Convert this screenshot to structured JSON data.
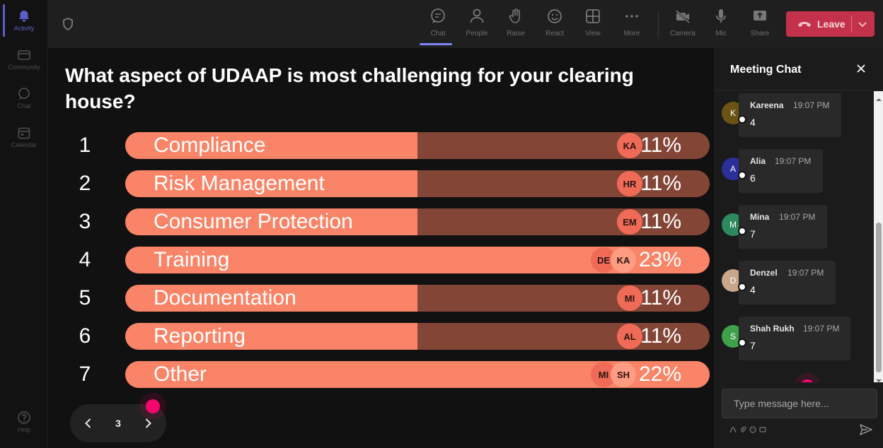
{
  "rail": {
    "items": [
      {
        "label": "Activity",
        "icon": "bell-icon"
      },
      {
        "label": "Community",
        "icon": "community-icon"
      },
      {
        "label": "Chat",
        "icon": "chat-icon"
      },
      {
        "label": "Calendar",
        "icon": "calendar-icon"
      }
    ],
    "help": {
      "label": "Help",
      "icon": "help-icon"
    }
  },
  "toolbar": {
    "items": [
      {
        "label": "Chat",
        "icon": "chat-icon"
      },
      {
        "label": "People",
        "icon": "people-icon"
      },
      {
        "label": "Raise",
        "icon": "hand-icon"
      },
      {
        "label": "React",
        "icon": "smiley-icon"
      },
      {
        "label": "View",
        "icon": "grid-icon"
      },
      {
        "label": "More",
        "icon": "more-icon"
      },
      {
        "label": "Camera",
        "icon": "camera-off-icon"
      },
      {
        "label": "Mic",
        "icon": "mic-icon"
      },
      {
        "label": "Share",
        "icon": "share-icon"
      }
    ],
    "leave_label": "Leave",
    "leave_color": "#c4314b"
  },
  "poll": {
    "question": "What aspect of UDAAP is most challenging for your clearing house?",
    "options": [
      {
        "number": "1",
        "label": "Compliance",
        "percent": "11%",
        "fill": 0.5,
        "avatars": [
          "KA"
        ]
      },
      {
        "number": "2",
        "label": "Risk Management",
        "percent": "11%",
        "fill": 0.5,
        "avatars": [
          "HR"
        ]
      },
      {
        "number": "3",
        "label": "Consumer Protection",
        "percent": "11%",
        "fill": 0.5,
        "avatars": [
          "EM"
        ]
      },
      {
        "number": "4",
        "label": "Training",
        "percent": "23%",
        "fill": 1.0,
        "avatars": [
          "DE",
          "KA"
        ]
      },
      {
        "number": "5",
        "label": "Documentation",
        "percent": "11%",
        "fill": 0.5,
        "avatars": [
          "MI"
        ]
      },
      {
        "number": "6",
        "label": "Reporting",
        "percent": "11%",
        "fill": 0.5,
        "avatars": [
          "AL"
        ]
      },
      {
        "number": "7",
        "label": "Other",
        "percent": "22%",
        "fill": 1.0,
        "avatars": [
          "MI",
          "SH"
        ]
      }
    ],
    "bar_color": "#f98467",
    "track_color": "#834636",
    "page": "3"
  },
  "chat": {
    "title": "Meeting Chat",
    "messages": [
      {
        "initial": "K",
        "author": "Kareena",
        "time": "19:07 PM",
        "text": "4",
        "color": "#6b5314"
      },
      {
        "initial": "A",
        "author": "Alia",
        "time": "19:07 PM",
        "text": "6",
        "color": "#2a2f9a"
      },
      {
        "initial": "M",
        "author": "Mina",
        "time": "19:07 PM",
        "text": "7",
        "color": "#2d8a5e"
      },
      {
        "initial": "D",
        "author": "Denzel",
        "time": "19:07 PM",
        "text": "4",
        "color": "#c9a58c"
      },
      {
        "initial": "S",
        "author": "Shah Rukh",
        "time": "19:07 PM",
        "text": "7",
        "color": "#3fa24a"
      }
    ],
    "placeholder": "Type message here..."
  }
}
